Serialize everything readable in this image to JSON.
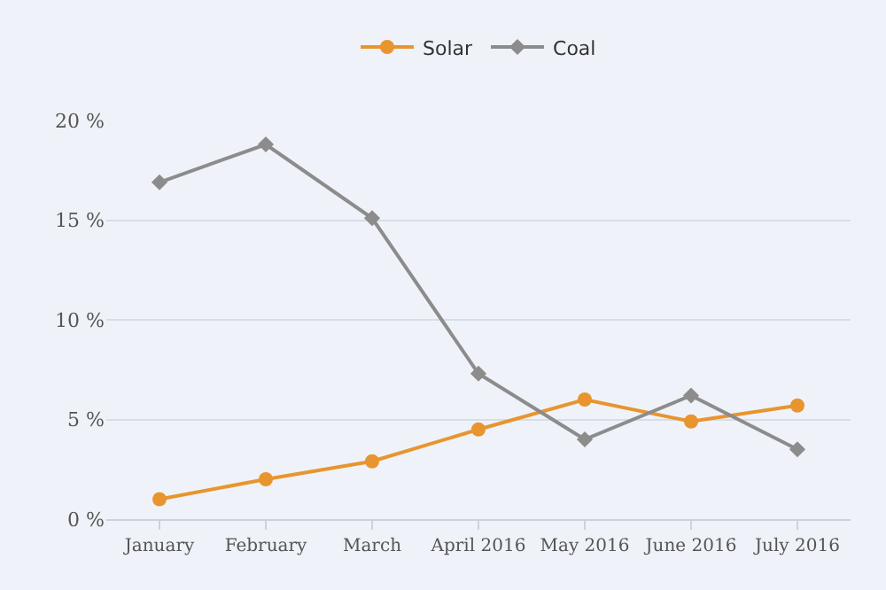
{
  "chart_data": {
    "type": "line",
    "categories": [
      "January",
      "February",
      "March",
      "April 2016",
      "May 2016",
      "June 2016",
      "July 2016"
    ],
    "series": [
      {
        "name": "Solar",
        "color": "#e8952f",
        "marker": "circle",
        "values": [
          1.0,
          2.0,
          2.9,
          4.5,
          6.0,
          4.9,
          5.7
        ]
      },
      {
        "name": "Coal",
        "color": "#8c8c8c",
        "marker": "diamond",
        "values": [
          16.9,
          18.8,
          15.1,
          7.3,
          4.0,
          6.2,
          3.5
        ]
      }
    ],
    "ylim": [
      0,
      20
    ],
    "yticks": [
      {
        "value": 0,
        "label": "0 %"
      },
      {
        "value": 5,
        "label": "5 %"
      },
      {
        "value": 10,
        "label": "10 %"
      },
      {
        "value": 15,
        "label": "15 %"
      },
      {
        "value": 20,
        "label": "20 %"
      }
    ],
    "grid": "y",
    "legend": "top",
    "line_style": "solid"
  }
}
